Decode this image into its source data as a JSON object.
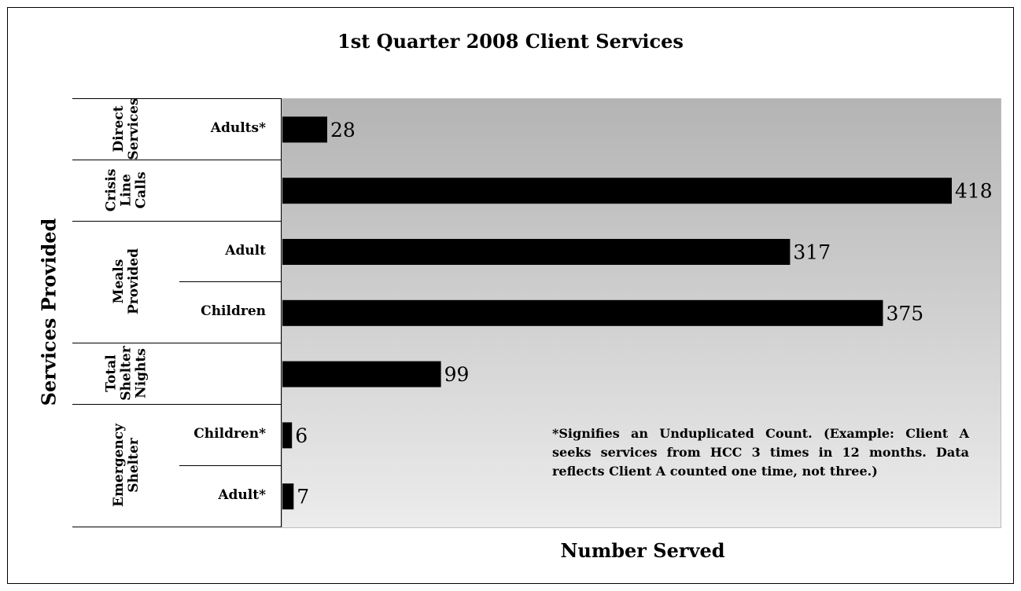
{
  "chart_data": {
    "type": "bar",
    "orientation": "horizontal",
    "title": "1st Quarter 2008 Client Services",
    "xlabel": "Number Served",
    "ylabel": "Services Provided",
    "xlim": [
      0,
      440
    ],
    "grid": false,
    "groups": [
      {
        "name": "Direct Services",
        "categories": [
          "Adults*"
        ],
        "values": [
          28
        ]
      },
      {
        "name": "Crisis Line Calls",
        "categories": [
          ""
        ],
        "values": [
          418
        ]
      },
      {
        "name": "Meals Provided",
        "categories": [
          "Adult",
          "Children"
        ],
        "values": [
          317,
          375
        ]
      },
      {
        "name": "Total Shelter Nights",
        "categories": [
          ""
        ],
        "values": [
          99
        ]
      },
      {
        "name": "Emergency Shelter",
        "categories": [
          "Children*",
          "Adult*"
        ],
        "values": [
          6,
          7
        ]
      }
    ],
    "bars": [
      {
        "group": "Direct Services",
        "category": "Adults*",
        "value": 28
      },
      {
        "group": "Crisis Line Calls",
        "category": "",
        "value": 418
      },
      {
        "group": "Meals Provided",
        "category": "Adult",
        "value": 317
      },
      {
        "group": "Meals Provided",
        "category": "Children",
        "value": 375
      },
      {
        "group": "Total Shelter Nights",
        "category": "",
        "value": 99
      },
      {
        "group": "Emergency Shelter",
        "category": "Children*",
        "value": 6
      },
      {
        "group": "Emergency Shelter",
        "category": "Adult*",
        "value": 7
      }
    ],
    "bar_color": "#000000",
    "background_gradient": [
      "#b4b4b4",
      "#ececec"
    ]
  },
  "note": "*Signifies an Unduplicated Count. (Example: Client A seeks services from HCC 3 times in 12 months. Data reflects Client A counted one time, not three.)",
  "group_label_lines": [
    [
      "Direct",
      "Services"
    ],
    [
      "Crisis",
      "Line",
      "Calls"
    ],
    [
      "Meals",
      "Provided"
    ],
    [
      "Total",
      "Shelter",
      "Nights"
    ],
    [
      "Emergency",
      "Shelter"
    ]
  ]
}
